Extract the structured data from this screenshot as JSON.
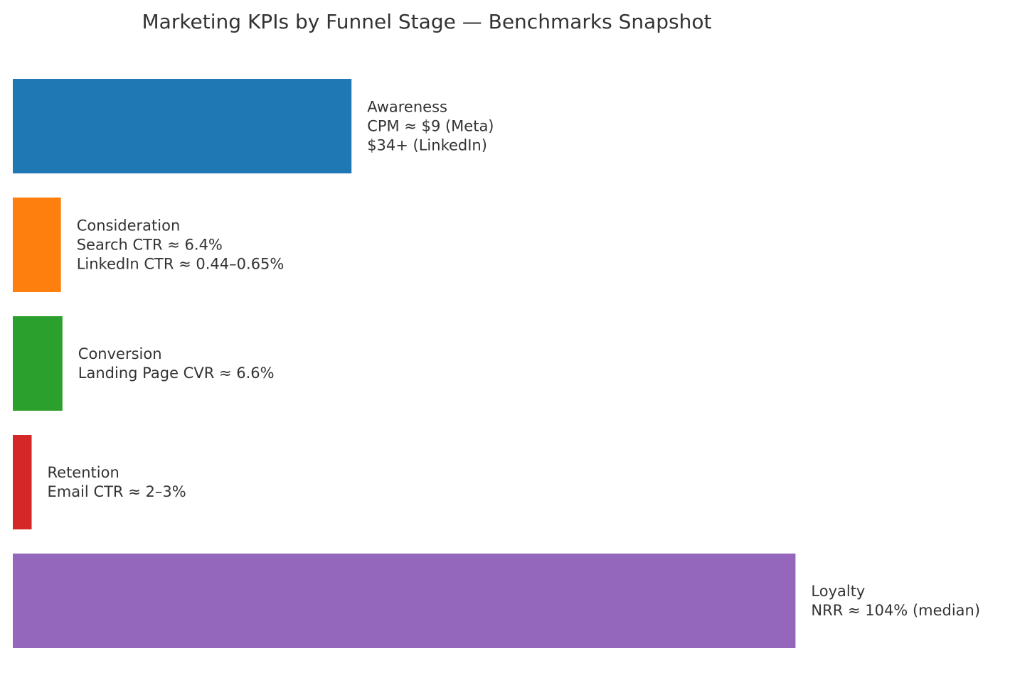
{
  "chart_data": {
    "type": "bar",
    "orientation": "horizontal",
    "title": "Marketing KPIs by Funnel Stage — Benchmarks Snapshot",
    "xlabel": "",
    "ylabel": "",
    "grid": false,
    "axes_visible": false,
    "categories": [
      "Awareness",
      "Consideration",
      "Conversion",
      "Retention",
      "Loyalty"
    ],
    "values": [
      9,
      1.28,
      1.32,
      0.5,
      20.8
    ],
    "xlim": [
      0,
      26.5
    ],
    "series": [
      {
        "values": [
          9,
          1.28,
          1.32,
          0.5,
          20.8
        ]
      }
    ],
    "colors": [
      "#1f77b4",
      "#ff7f0e",
      "#2ca02c",
      "#d62728",
      "#9467bd"
    ],
    "labels": [
      [
        "Awareness",
        "CPM ≈ $9 (Meta)",
        "$34+ (LinkedIn)"
      ],
      [
        "Consideration",
        "Search CTR ≈ 6.4%",
        "LinkedIn CTR ≈ 0.44–0.65%"
      ],
      [
        "Conversion",
        "Landing Page CVR ≈ 6.6%"
      ],
      [
        "Retention",
        "Email CTR ≈ 2–3%"
      ],
      [
        "Loyalty",
        "NRR ≈ 104% (median)"
      ]
    ]
  }
}
